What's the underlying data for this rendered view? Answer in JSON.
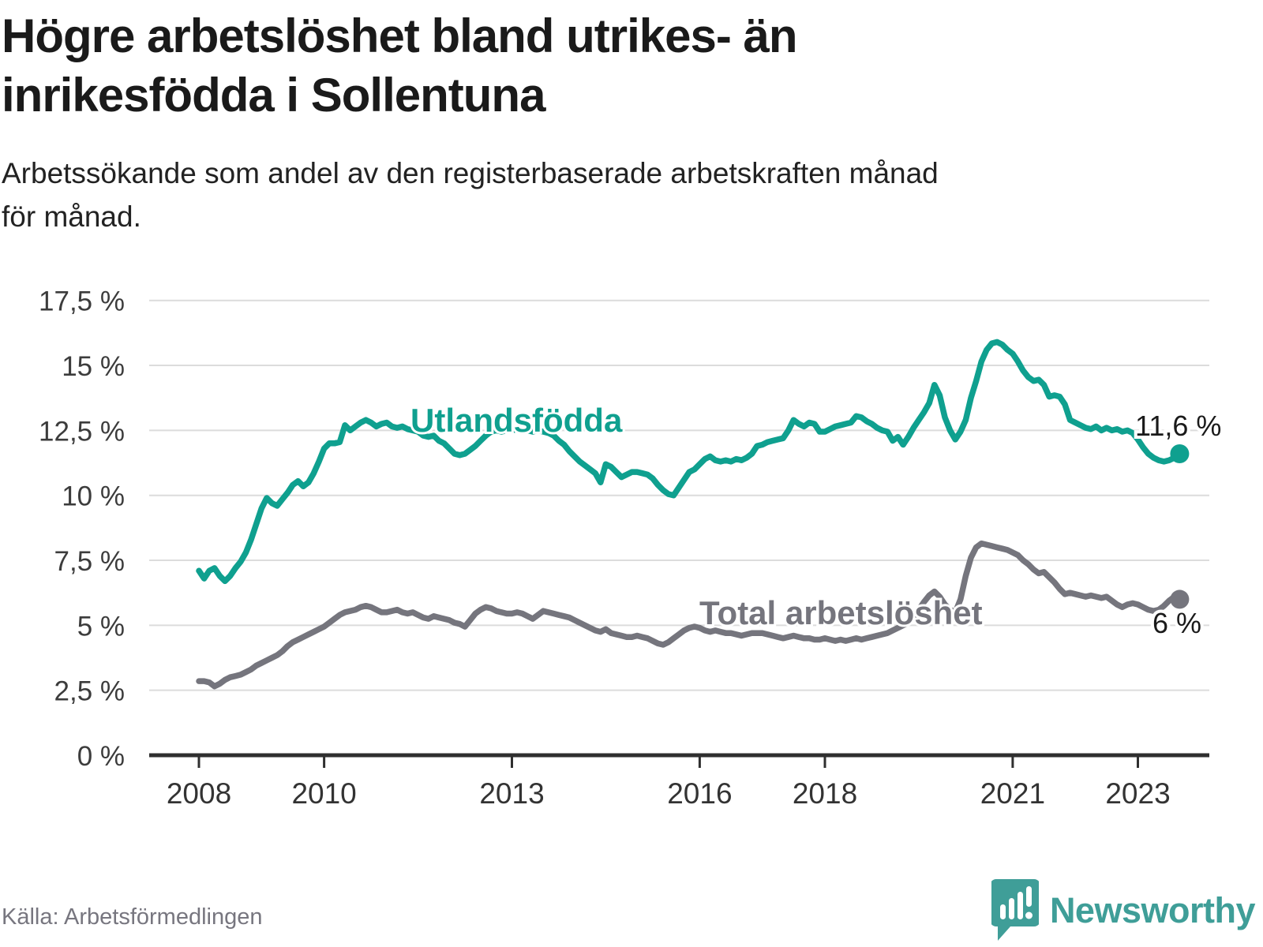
{
  "header": {
    "title_lines": [
      "Högre arbetslöshet bland utrikes- än",
      "inrikesfödda i Sollentuna"
    ],
    "subtitle_lines": [
      "Arbetssökande som andel av den registerbaserade arbetskraften månad",
      "för månad."
    ]
  },
  "footer": {
    "source": "Källa: Arbetsförmedlingen",
    "brand": "Newsworthy",
    "brand_color": "#3f9e98"
  },
  "chart_data": {
    "type": "line",
    "title": "Högre arbetslöshet bland utrikes- än inrikesfödda i Sollentuna",
    "subtitle": "Arbetssökande som andel av den registerbaserade arbetskraften månad för månad.",
    "frequency": "monthly",
    "start": "2008-01",
    "end": "2023-09",
    "grid": "horizontal",
    "legend_position": "inline-labels",
    "x_axis": {
      "ticks": [
        2008,
        2010,
        2013,
        2016,
        2018,
        2021,
        2023
      ],
      "tick_labels": [
        "2008",
        "2010",
        "2013",
        "2016",
        "2018",
        "2021",
        "2023"
      ]
    },
    "y_axis": {
      "min": 0,
      "max": 17.5,
      "tick_step": 2.5,
      "unit": "%",
      "tick_labels": [
        "0 %",
        "2,5 %",
        "5 %",
        "7,5 %",
        "10 %",
        "12,5 %",
        "15 %",
        "17,5 %"
      ]
    },
    "series": [
      {
        "name": "Utlandsfödda",
        "color": "#0fa08f",
        "end_label": "11,6 %",
        "end_value": 11.6,
        "values": [
          7.1,
          6.8,
          7.1,
          7.2,
          6.9,
          6.7,
          6.9,
          7.2,
          7.45,
          7.8,
          8.3,
          8.9,
          9.5,
          9.9,
          9.7,
          9.6,
          9.85,
          10.1,
          10.4,
          10.55,
          10.35,
          10.5,
          10.85,
          11.3,
          11.8,
          12.0,
          12.0,
          12.05,
          12.7,
          12.5,
          12.65,
          12.8,
          12.9,
          12.8,
          12.65,
          12.75,
          12.8,
          12.65,
          12.6,
          12.65,
          12.55,
          12.5,
          12.45,
          12.3,
          12.25,
          12.3,
          12.1,
          12.0,
          11.8,
          11.6,
          11.55,
          11.6,
          11.75,
          11.9,
          12.1,
          12.3,
          12.45,
          12.5,
          12.45,
          12.5,
          12.5,
          12.55,
          12.5,
          12.5,
          12.45,
          12.5,
          12.45,
          12.4,
          12.3,
          12.1,
          11.95,
          11.7,
          11.5,
          11.3,
          11.15,
          11.0,
          10.85,
          10.5,
          11.2,
          11.1,
          10.9,
          10.7,
          10.8,
          10.9,
          10.9,
          10.85,
          10.8,
          10.65,
          10.4,
          10.2,
          10.05,
          10.0,
          10.3,
          10.6,
          10.9,
          11.0,
          11.2,
          11.4,
          11.5,
          11.35,
          11.3,
          11.35,
          11.3,
          11.4,
          11.35,
          11.45,
          11.6,
          11.9,
          11.95,
          12.05,
          12.1,
          12.15,
          12.2,
          12.5,
          12.9,
          12.75,
          12.65,
          12.8,
          12.75,
          12.45,
          12.45,
          12.55,
          12.65,
          12.7,
          12.75,
          12.8,
          13.05,
          13.0,
          12.85,
          12.75,
          12.6,
          12.5,
          12.45,
          12.1,
          12.25,
          11.95,
          12.25,
          12.6,
          12.9,
          13.2,
          13.55,
          14.25,
          13.85,
          13.0,
          12.5,
          12.15,
          12.45,
          12.9,
          13.75,
          14.4,
          15.15,
          15.6,
          15.85,
          15.9,
          15.8,
          15.6,
          15.45,
          15.15,
          14.8,
          14.55,
          14.4,
          14.45,
          14.25,
          13.8,
          13.85,
          13.8,
          13.5,
          12.9,
          12.8,
          12.7,
          12.6,
          12.55,
          12.65,
          12.5,
          12.6,
          12.5,
          12.55,
          12.45,
          12.5,
          12.4,
          12.15,
          11.85,
          11.6,
          11.45,
          11.35,
          11.3,
          11.35,
          11.45,
          11.6
        ]
      },
      {
        "name": "Total arbetslöshet",
        "color": "#75757d",
        "end_label": "6 %",
        "end_value": 6.0,
        "values": [
          2.85,
          2.85,
          2.8,
          2.65,
          2.75,
          2.9,
          3.0,
          3.05,
          3.1,
          3.2,
          3.3,
          3.45,
          3.55,
          3.65,
          3.75,
          3.85,
          4.0,
          4.2,
          4.35,
          4.45,
          4.55,
          4.65,
          4.75,
          4.85,
          4.95,
          5.1,
          5.25,
          5.4,
          5.5,
          5.55,
          5.6,
          5.7,
          5.75,
          5.7,
          5.6,
          5.5,
          5.5,
          5.55,
          5.6,
          5.5,
          5.45,
          5.5,
          5.4,
          5.3,
          5.25,
          5.35,
          5.3,
          5.25,
          5.2,
          5.1,
          5.05,
          4.95,
          5.2,
          5.45,
          5.6,
          5.7,
          5.65,
          5.55,
          5.5,
          5.45,
          5.45,
          5.5,
          5.45,
          5.35,
          5.25,
          5.4,
          5.55,
          5.5,
          5.45,
          5.4,
          5.35,
          5.3,
          5.2,
          5.1,
          5.0,
          4.9,
          4.8,
          4.75,
          4.85,
          4.7,
          4.65,
          4.6,
          4.55,
          4.55,
          4.6,
          4.55,
          4.5,
          4.4,
          4.3,
          4.25,
          4.35,
          4.5,
          4.65,
          4.8,
          4.9,
          4.95,
          4.9,
          4.8,
          4.75,
          4.8,
          4.75,
          4.7,
          4.7,
          4.65,
          4.6,
          4.65,
          4.7,
          4.7,
          4.7,
          4.65,
          4.6,
          4.55,
          4.5,
          4.55,
          4.6,
          4.55,
          4.5,
          4.5,
          4.45,
          4.45,
          4.5,
          4.45,
          4.4,
          4.45,
          4.4,
          4.45,
          4.5,
          4.45,
          4.5,
          4.55,
          4.6,
          4.65,
          4.7,
          4.8,
          4.9,
          5.0,
          5.1,
          5.3,
          5.6,
          5.9,
          6.15,
          6.3,
          6.1,
          5.8,
          5.6,
          5.5,
          6.0,
          6.9,
          7.6,
          8.0,
          8.15,
          8.1,
          8.05,
          8.0,
          7.95,
          7.9,
          7.8,
          7.7,
          7.5,
          7.35,
          7.15,
          7.0,
          7.05,
          6.85,
          6.65,
          6.4,
          6.2,
          6.25,
          6.2,
          6.15,
          6.1,
          6.15,
          6.1,
          6.05,
          6.1,
          5.95,
          5.8,
          5.7,
          5.8,
          5.85,
          5.8,
          5.7,
          5.6,
          5.55,
          5.6,
          5.75,
          5.95,
          6.1,
          6.0
        ]
      }
    ]
  }
}
